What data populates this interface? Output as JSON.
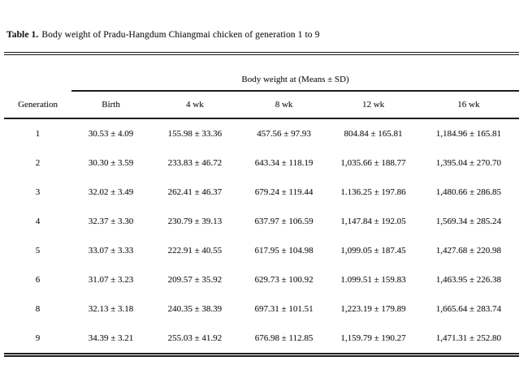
{
  "title": {
    "label": "Table 1.",
    "text": "Body weight of Pradu-Hangdum Chiangmai chicken of generation 1 to 9"
  },
  "table": {
    "span_header": "Body weight at (Means ± SD)",
    "columns": [
      "Generation",
      "Birth",
      "4 wk",
      "8 wk",
      "12 wk",
      "16 wk"
    ],
    "rows": [
      [
        "1",
        "30.53 ± 4.09",
        "155.98 ± 33.36",
        "457.56 ± 97.93",
        "804.84 ± 165.81",
        "1,184.96 ± 165.81"
      ],
      [
        "2",
        "30.30 ± 3.59",
        "233.83 ± 46.72",
        "643.34 ± 118.19",
        "1,035.66 ± 188.77",
        "1,395.04 ± 270.70"
      ],
      [
        "3",
        "32.02 ± 3.49",
        "262.41 ± 46.37",
        "679.24 ± 119.44",
        "1.136.25 ± 197.86",
        "1,480.66 ± 286.85"
      ],
      [
        "4",
        "32.37 ± 3.30",
        "230.79 ± 39.13",
        "637.97 ± 106.59",
        "1,147.84 ± 192.05",
        "1,569.34 ± 285.24"
      ],
      [
        "5",
        "33.07 ± 3.33",
        "222.91 ± 40.55",
        "617.95 ± 104.98",
        "1,099.05 ± 187.45",
        "1,427.68 ± 220.98"
      ],
      [
        "6",
        "31.07 ± 3.23",
        "209.57 ± 35.92",
        "629.73 ± 100.92",
        "1.099.51 ± 159.83",
        "1,463.95 ± 226.38"
      ],
      [
        "8",
        "32.13 ± 3.18",
        "240.35 ± 38.39",
        "697.31 ± 101.51",
        "1,223.19 ± 179.89",
        "1,665.64 ± 283.74"
      ],
      [
        "9",
        "34.39 ± 3.21",
        "255.03 ± 41.92",
        "676.98 ± 112.85",
        "1,159.79 ± 190.27",
        "1,471.31 ± 252.80"
      ]
    ]
  },
  "colors": {
    "text": "#1d1d1d",
    "rule": "#1c1c1c",
    "background": "#ffffff"
  }
}
